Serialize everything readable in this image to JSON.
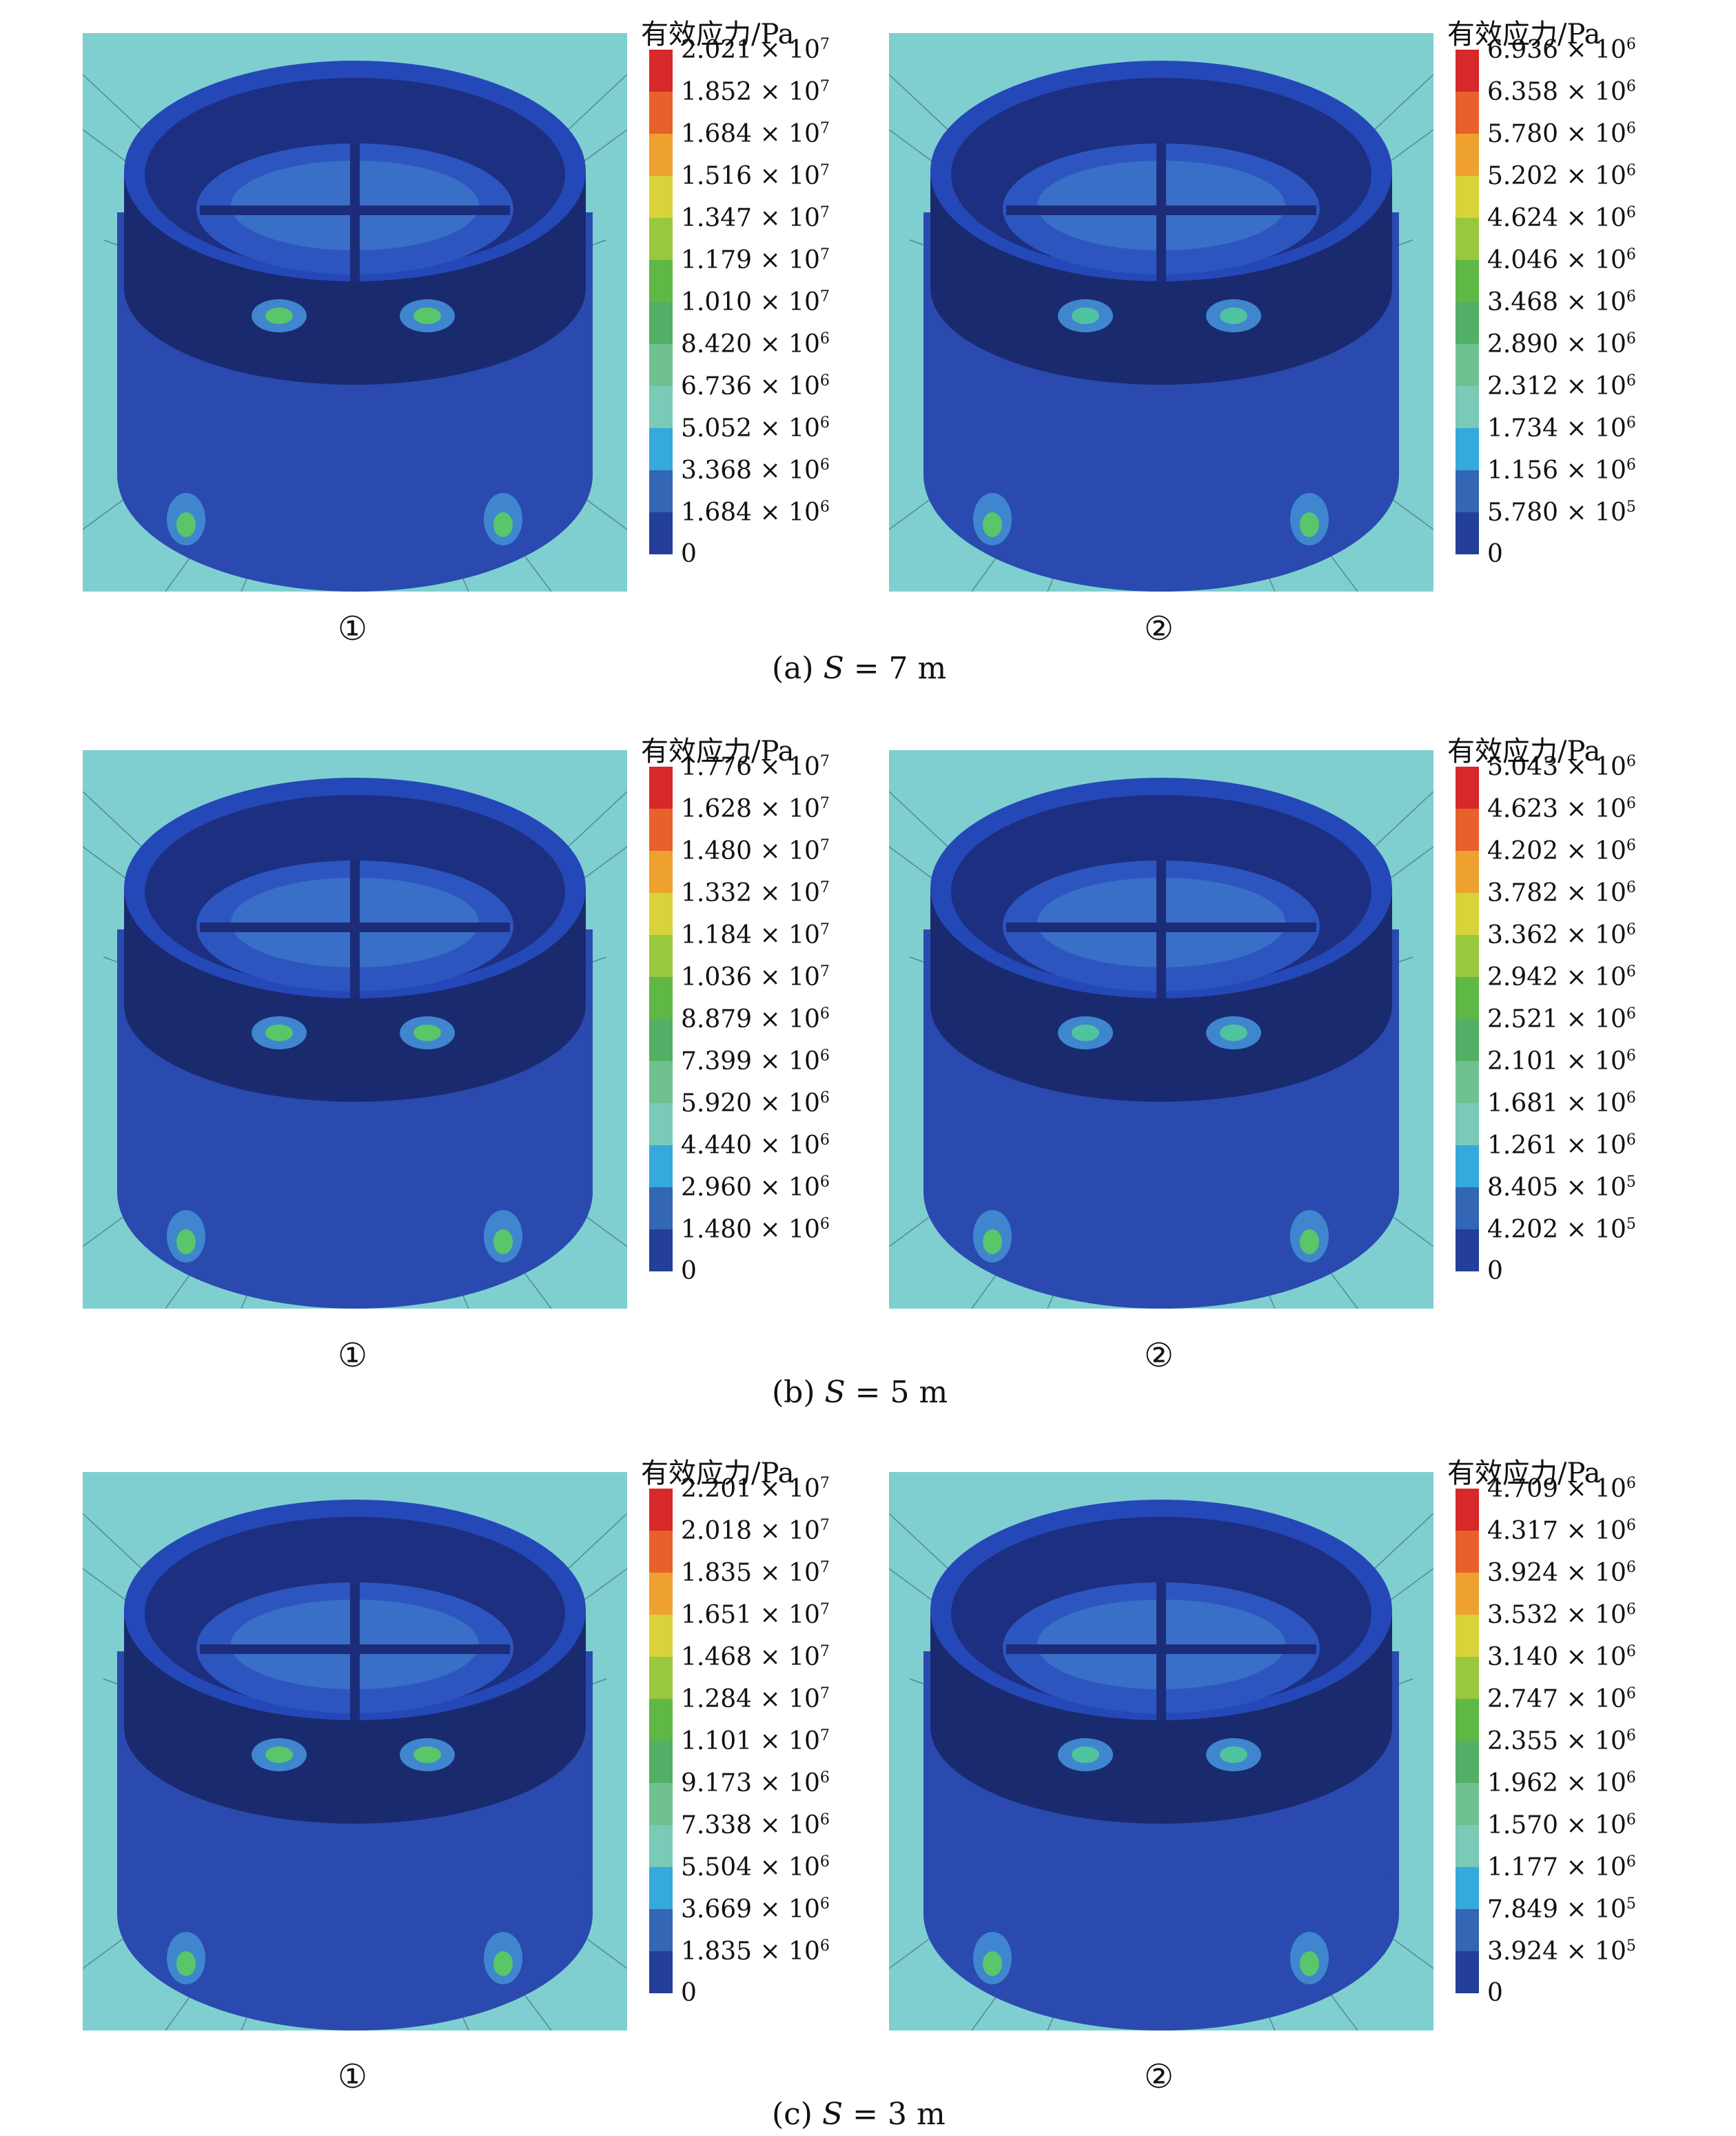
{
  "rows": [
    {
      "caption": {
        "prefix": "(a)",
        "var": "S",
        "rest": " = 7 m"
      },
      "panels": [
        {
          "index": "①",
          "legend_title": "有效应力/Pa",
          "ticks": [
            "2.021 × 10|7",
            "1.852 × 10|7",
            "1.684 × 10|7",
            "1.516 × 10|7",
            "1.347 × 10|7",
            "1.179 × 10|7",
            "1.010 × 10|7",
            "8.420 × 10|6",
            "6.736 × 10|6",
            "5.052 × 10|6",
            "3.368 × 10|6",
            "1.684 × 10|6",
            "0"
          ]
        },
        {
          "index": "②",
          "legend_title": "有效应力/Pa",
          "ticks": [
            "6.936 × 10|6",
            "6.358 × 10|6",
            "5.780 × 10|6",
            "5.202 × 10|6",
            "4.624 × 10|6",
            "4.046 × 10|6",
            "3.468 × 10|6",
            "2.890 × 10|6",
            "2.312 × 10|6",
            "1.734 × 10|6",
            "1.156 × 10|6",
            "5.780 × 10|5",
            "0"
          ]
        }
      ]
    },
    {
      "caption": {
        "prefix": "(b)",
        "var": "S",
        "rest": " = 5 m"
      },
      "panels": [
        {
          "index": "①",
          "legend_title": "有效应力/Pa",
          "ticks": [
            "1.776 × 10|7",
            "1.628 × 10|7",
            "1.480 × 10|7",
            "1.332 × 10|7",
            "1.184 × 10|7",
            "1.036 × 10|7",
            "8.879 × 10|6",
            "7.399 × 10|6",
            "5.920 × 10|6",
            "4.440 × 10|6",
            "2.960 × 10|6",
            "1.480 × 10|6",
            "0"
          ]
        },
        {
          "index": "②",
          "legend_title": "有效应力/Pa",
          "ticks": [
            "5.043 × 10|6",
            "4.623 × 10|6",
            "4.202 × 10|6",
            "3.782 × 10|6",
            "3.362 × 10|6",
            "2.942 × 10|6",
            "2.521 × 10|6",
            "2.101 × 10|6",
            "1.681 × 10|6",
            "1.261 × 10|6",
            "8.405 × 10|5",
            "4.202 × 10|5",
            "0"
          ]
        }
      ]
    },
    {
      "caption": {
        "prefix": "(c)",
        "var": "S",
        "rest": " = 3 m"
      },
      "panels": [
        {
          "index": "①",
          "legend_title": "有效应力/Pa",
          "ticks": [
            "2.201 × 10|7",
            "2.018 × 10|7",
            "1.835 × 10|7",
            "1.651 × 10|7",
            "1.468 × 10|7",
            "1.284 × 10|7",
            "1.101 × 10|7",
            "9.173 × 10|6",
            "7.338 × 10|6",
            "5.504 × 10|6",
            "3.669 × 10|6",
            "1.835 × 10|6",
            "0"
          ]
        },
        {
          "index": "②",
          "legend_title": "有效应力/Pa",
          "ticks": [
            "4.709 × 10|6",
            "4.317 × 10|6",
            "3.924 × 10|6",
            "3.532 × 10|6",
            "3.140 × 10|6",
            "2.747 × 10|6",
            "2.355 × 10|6",
            "1.962 × 10|6",
            "1.570 × 10|6",
            "1.177 × 10|6",
            "7.849 × 10|5",
            "3.924 × 10|5",
            "0"
          ]
        }
      ]
    }
  ],
  "colorbar": [
    "#d7282a",
    "#e8612c",
    "#eea12f",
    "#d8d33a",
    "#98c83e",
    "#5fb846",
    "#52b066",
    "#6fc28f",
    "#79cab7",
    "#35a9dc",
    "#3366b4",
    "#233f99"
  ],
  "colors": {
    "background_plane": "#7fcfd0",
    "structure": "#2a4ab0",
    "structure_dark": "#1a2a6e",
    "hotspot": "#59c66a"
  }
}
